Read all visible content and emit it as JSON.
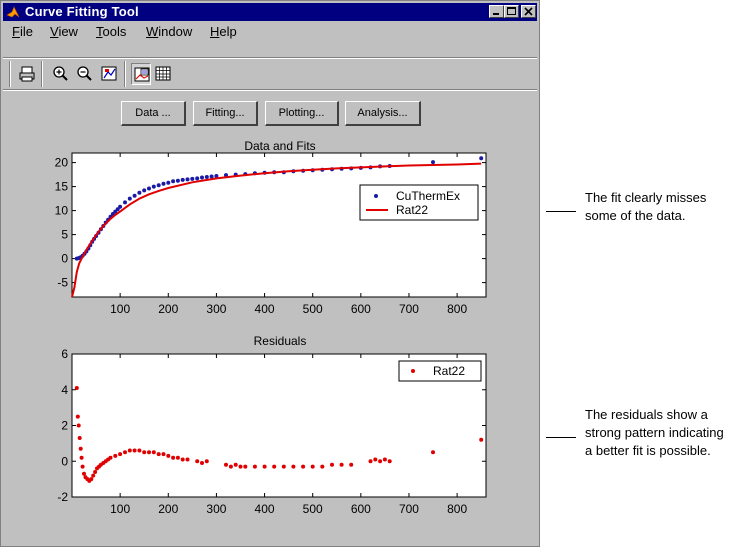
{
  "window": {
    "title": "Curve Fitting Tool"
  },
  "menu": {
    "items": [
      "File",
      "View",
      "Tools",
      "Window",
      "Help"
    ]
  },
  "toolbar": {
    "icons": [
      "print-icon",
      "zoom-in-icon",
      "zoom-out-icon",
      "axis-limits-icon",
      "legend-toggle-icon",
      "grid-toggle-icon"
    ]
  },
  "buttons": {
    "data": "Data ...",
    "fitting": "Fitting...",
    "plotting": "Plotting...",
    "analysis": "Analysis..."
  },
  "colors": {
    "data_points": "#1a1aa6",
    "fit_line": "#e00000",
    "residuals": "#e00000",
    "title_bar": "#000080"
  },
  "chart_data": [
    {
      "type": "scatter",
      "title": "Data and Fits",
      "xlim": [
        0,
        860
      ],
      "ylim": [
        -8,
        22
      ],
      "xticks": [
        100,
        200,
        300,
        400,
        500,
        600,
        700,
        800
      ],
      "yticks": [
        -5,
        0,
        5,
        10,
        15,
        20
      ],
      "legend": {
        "placement": "right",
        "entries": [
          "CuThermEx",
          "Rat22"
        ]
      },
      "series": [
        {
          "name": "CuThermEx",
          "kind": "points",
          "x": [
            10,
            14,
            18,
            22,
            26,
            30,
            34,
            38,
            42,
            46,
            50,
            55,
            60,
            65,
            70,
            75,
            80,
            85,
            90,
            95,
            100,
            110,
            120,
            130,
            140,
            150,
            160,
            170,
            180,
            190,
            200,
            210,
            220,
            230,
            240,
            250,
            260,
            270,
            280,
            290,
            300,
            320,
            340,
            360,
            380,
            400,
            420,
            440,
            460,
            480,
            500,
            520,
            540,
            560,
            580,
            600,
            620,
            640,
            660,
            750,
            850
          ],
          "y": [
            0.0,
            0.1,
            0.3,
            0.6,
            1.0,
            1.5,
            2.1,
            2.8,
            3.5,
            4.1,
            4.7,
            5.4,
            6.1,
            6.8,
            7.5,
            8.1,
            8.7,
            9.3,
            9.8,
            10.3,
            10.8,
            11.7,
            12.5,
            13.1,
            13.7,
            14.2,
            14.6,
            15.0,
            15.3,
            15.6,
            15.8,
            16.1,
            16.2,
            16.4,
            16.5,
            16.6,
            16.7,
            16.9,
            17.0,
            17.1,
            17.2,
            17.4,
            17.5,
            17.6,
            17.8,
            17.9,
            18.0,
            18.0,
            18.2,
            18.3,
            18.4,
            18.5,
            18.6,
            18.7,
            18.8,
            18.9,
            19.0,
            19.2,
            19.3,
            20.1,
            20.9
          ]
        },
        {
          "name": "Rat22",
          "kind": "line",
          "x": [
            0,
            5,
            10,
            15,
            20,
            30,
            40,
            50,
            60,
            70,
            80,
            90,
            100,
            120,
            140,
            160,
            180,
            200,
            250,
            300,
            350,
            400,
            450,
            500,
            550,
            600,
            650,
            700,
            750,
            800,
            850
          ],
          "y": [
            -8.0,
            -6.0,
            -2.8,
            -1.0,
            0.0,
            1.8,
            3.4,
            4.9,
            6.2,
            7.3,
            8.3,
            9.1,
            9.8,
            11.3,
            12.5,
            13.4,
            14.1,
            14.7,
            15.9,
            16.7,
            17.3,
            17.8,
            18.2,
            18.5,
            18.8,
            19.0,
            19.2,
            19.4,
            19.5,
            19.6,
            19.8
          ]
        }
      ]
    },
    {
      "type": "scatter",
      "title": "Residuals",
      "xlim": [
        0,
        860
      ],
      "ylim": [
        -2,
        6
      ],
      "xticks": [
        100,
        200,
        300,
        400,
        500,
        600,
        700,
        800
      ],
      "yticks": [
        -2,
        0,
        2,
        4,
        6
      ],
      "legend": {
        "placement": "top-right",
        "entries": [
          "Rat22"
        ]
      },
      "series": [
        {
          "name": "Rat22",
          "kind": "points",
          "x": [
            10,
            12,
            14,
            16,
            18,
            20,
            22,
            25,
            28,
            32,
            36,
            40,
            44,
            48,
            52,
            56,
            60,
            65,
            70,
            75,
            80,
            90,
            100,
            110,
            120,
            130,
            140,
            150,
            160,
            170,
            180,
            190,
            200,
            210,
            220,
            230,
            240,
            260,
            270,
            280,
            320,
            330,
            340,
            350,
            360,
            380,
            400,
            420,
            440,
            460,
            480,
            500,
            520,
            540,
            560,
            580,
            620,
            630,
            640,
            650,
            660,
            750,
            850
          ],
          "y": [
            4.1,
            2.5,
            2.0,
            1.3,
            0.7,
            0.2,
            -0.3,
            -0.7,
            -0.9,
            -1.0,
            -1.1,
            -1.0,
            -0.8,
            -0.6,
            -0.4,
            -0.3,
            -0.2,
            -0.1,
            0.0,
            0.1,
            0.2,
            0.3,
            0.4,
            0.5,
            0.6,
            0.6,
            0.6,
            0.5,
            0.5,
            0.5,
            0.4,
            0.4,
            0.3,
            0.2,
            0.2,
            0.1,
            0.1,
            0.0,
            -0.1,
            0.0,
            -0.2,
            -0.3,
            -0.2,
            -0.3,
            -0.3,
            -0.3,
            -0.3,
            -0.3,
            -0.3,
            -0.3,
            -0.3,
            -0.3,
            -0.3,
            -0.2,
            -0.2,
            -0.2,
            0.0,
            0.1,
            0.0,
            0.1,
            0.0,
            0.5,
            1.2
          ]
        }
      ]
    }
  ],
  "annotations": {
    "top": [
      "The fit clearly misses",
      "some of the data."
    ],
    "bottom": [
      "The residuals show a",
      "strong pattern indicating",
      "a better fit is possible."
    ]
  }
}
